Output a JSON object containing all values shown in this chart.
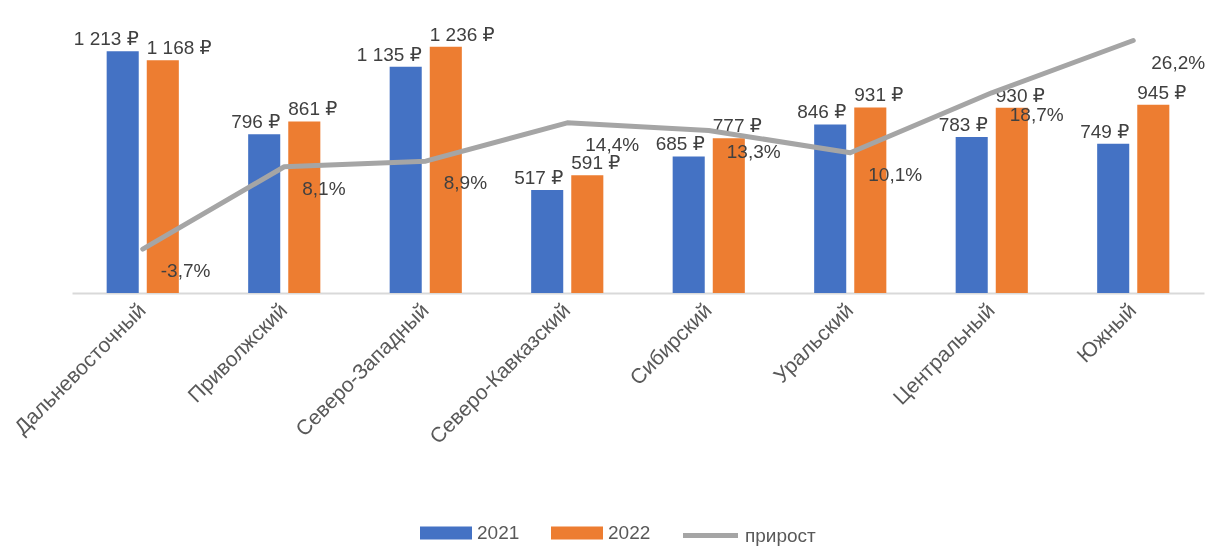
{
  "chart_data": {
    "type": "bar",
    "categories": [
      "Дальневосточный",
      "Приволжский",
      "Северо-Западный",
      "Северо-Кавказский",
      "Сибирский",
      "Уральский",
      "Центральный",
      "Южный"
    ],
    "series": [
      {
        "name": "2021",
        "color": "#4472c4",
        "values": [
          1213,
          796,
          1135,
          517,
          685,
          846,
          783,
          749
        ],
        "value_labels": [
          "1 213 ₽",
          "796 ₽",
          "1 135 ₽",
          "517 ₽",
          "685 ₽",
          "846 ₽",
          "783 ₽",
          "749 ₽"
        ]
      },
      {
        "name": "2022",
        "color": "#ed7d31",
        "values": [
          1168,
          861,
          1236,
          591,
          777,
          931,
          930,
          945
        ],
        "value_labels": [
          "1 168 ₽",
          "861 ₽",
          "1 236 ₽",
          "591 ₽",
          "777 ₽",
          "931 ₽",
          "930 ₽",
          "945 ₽"
        ]
      },
      {
        "name": "прирост",
        "type": "line",
        "axis": "y2",
        "color": "#a5a5a5",
        "values": [
          -3.7,
          8.1,
          8.9,
          14.4,
          13.3,
          10.1,
          18.7,
          26.2
        ],
        "value_labels": [
          "-3,7%",
          "8,1%",
          "8,9%",
          "14,4%",
          "13,3%",
          "10,1%",
          "18,7%",
          "26,2%"
        ]
      }
    ],
    "legend": "bottom",
    "tick_labels": "x",
    "line_style": "solid"
  }
}
